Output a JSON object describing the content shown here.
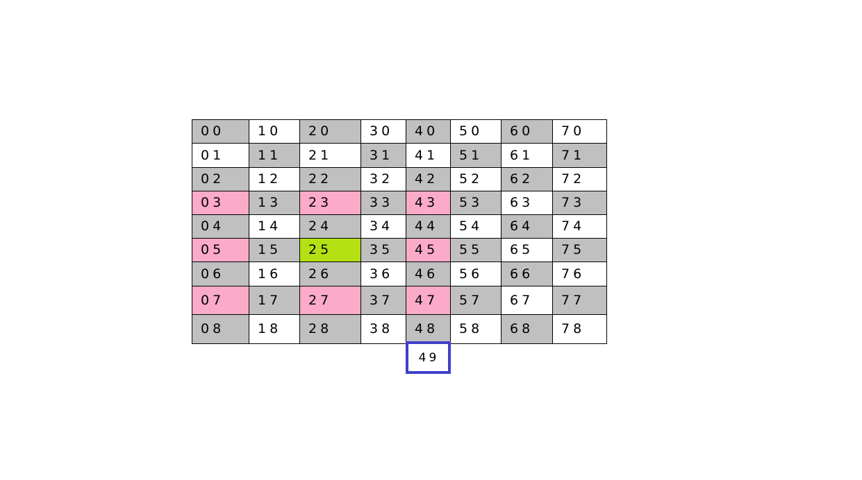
{
  "colors": {
    "gray": "#c0c0c0",
    "white": "#ffffff",
    "pink": "#fbaac8",
    "green": "#b4e014",
    "highlight_border": "#4040c8"
  },
  "grid": {
    "columns": 8,
    "rows": [
      [
        {
          "label": "00",
          "fill": "gray"
        },
        {
          "label": "10",
          "fill": "white"
        },
        {
          "label": "20",
          "fill": "gray"
        },
        {
          "label": "30",
          "fill": "white"
        },
        {
          "label": "40",
          "fill": "gray"
        },
        {
          "label": "50",
          "fill": "white"
        },
        {
          "label": "60",
          "fill": "gray"
        },
        {
          "label": "70",
          "fill": "white"
        }
      ],
      [
        {
          "label": "01",
          "fill": "white"
        },
        {
          "label": "11",
          "fill": "gray"
        },
        {
          "label": "21",
          "fill": "white"
        },
        {
          "label": "31",
          "fill": "gray"
        },
        {
          "label": "41",
          "fill": "white"
        },
        {
          "label": "51",
          "fill": "gray"
        },
        {
          "label": "61",
          "fill": "white"
        },
        {
          "label": "71",
          "fill": "gray"
        }
      ],
      [
        {
          "label": "02",
          "fill": "gray"
        },
        {
          "label": "12",
          "fill": "white"
        },
        {
          "label": "22",
          "fill": "gray"
        },
        {
          "label": "32",
          "fill": "white"
        },
        {
          "label": "42",
          "fill": "gray"
        },
        {
          "label": "52",
          "fill": "white"
        },
        {
          "label": "62",
          "fill": "gray"
        },
        {
          "label": "72",
          "fill": "white"
        }
      ],
      [
        {
          "label": "03",
          "fill": "pink"
        },
        {
          "label": "13",
          "fill": "gray"
        },
        {
          "label": "23",
          "fill": "pink"
        },
        {
          "label": "33",
          "fill": "gray"
        },
        {
          "label": "43",
          "fill": "pink"
        },
        {
          "label": "53",
          "fill": "gray"
        },
        {
          "label": "63",
          "fill": "white"
        },
        {
          "label": "73",
          "fill": "gray"
        }
      ],
      [
        {
          "label": "04",
          "fill": "gray"
        },
        {
          "label": "14",
          "fill": "white"
        },
        {
          "label": "24",
          "fill": "gray"
        },
        {
          "label": "34",
          "fill": "white"
        },
        {
          "label": "44",
          "fill": "gray"
        },
        {
          "label": "54",
          "fill": "white"
        },
        {
          "label": "64",
          "fill": "gray"
        },
        {
          "label": "74",
          "fill": "white"
        }
      ],
      [
        {
          "label": "05",
          "fill": "pink"
        },
        {
          "label": "15",
          "fill": "gray"
        },
        {
          "label": "25",
          "fill": "green"
        },
        {
          "label": "35",
          "fill": "gray"
        },
        {
          "label": "45",
          "fill": "pink"
        },
        {
          "label": "55",
          "fill": "gray"
        },
        {
          "label": "65",
          "fill": "white"
        },
        {
          "label": "75",
          "fill": "gray"
        }
      ],
      [
        {
          "label": "06",
          "fill": "gray"
        },
        {
          "label": "16",
          "fill": "white"
        },
        {
          "label": "26",
          "fill": "gray"
        },
        {
          "label": "36",
          "fill": "white"
        },
        {
          "label": "46",
          "fill": "gray"
        },
        {
          "label": "56",
          "fill": "white"
        },
        {
          "label": "66",
          "fill": "gray"
        },
        {
          "label": "76",
          "fill": "white"
        }
      ],
      [
        {
          "label": "07",
          "fill": "pink"
        },
        {
          "label": "17",
          "fill": "gray"
        },
        {
          "label": "27",
          "fill": "pink"
        },
        {
          "label": "37",
          "fill": "gray"
        },
        {
          "label": "47",
          "fill": "pink"
        },
        {
          "label": "57",
          "fill": "gray"
        },
        {
          "label": "67",
          "fill": "white"
        },
        {
          "label": "77",
          "fill": "gray"
        }
      ],
      [
        {
          "label": "08",
          "fill": "gray"
        },
        {
          "label": "18",
          "fill": "white"
        },
        {
          "label": "28",
          "fill": "gray"
        },
        {
          "label": "38",
          "fill": "white"
        },
        {
          "label": "48",
          "fill": "gray"
        },
        {
          "label": "58",
          "fill": "white"
        },
        {
          "label": "68",
          "fill": "gray"
        },
        {
          "label": "78",
          "fill": "white"
        }
      ]
    ]
  },
  "extra_cell": {
    "label": "49"
  }
}
